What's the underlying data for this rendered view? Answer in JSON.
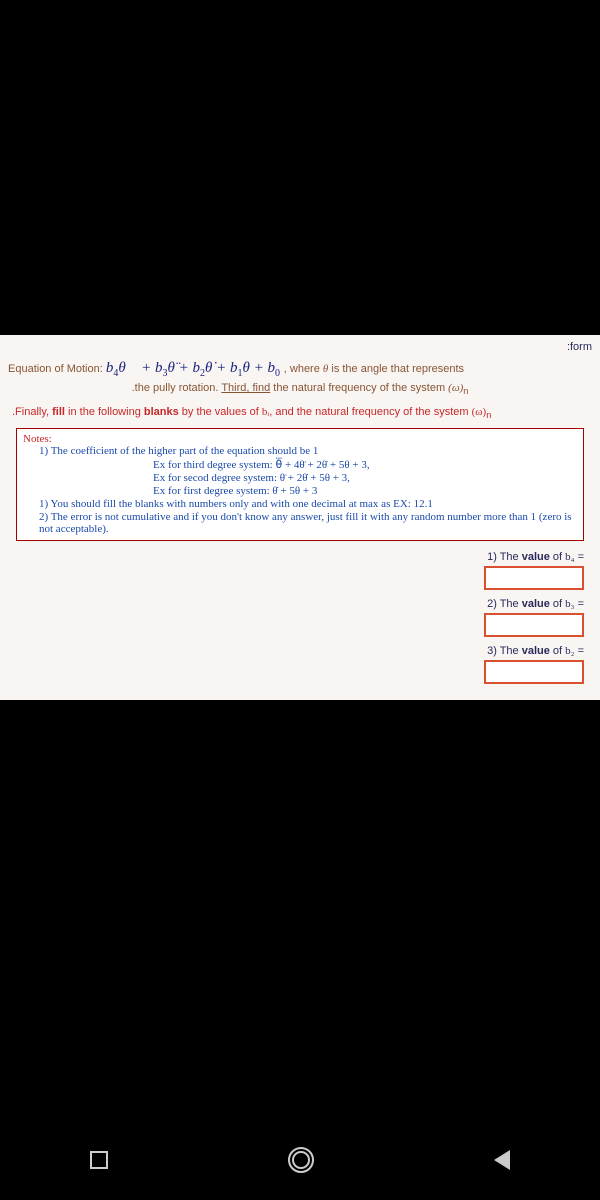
{
  "form_label": ":form",
  "equation": {
    "label": "Equation of Motion:  ",
    "b4": "b",
    "sub4": "4",
    "theta4": "θ⃛",
    "plus1": " + ",
    "b3": "b",
    "sub3": "3",
    "theta3": "θ̈",
    "plus2": " + ",
    "b2": "b",
    "sub2": "2",
    "theta2": "θ̇",
    "plus3": " + ",
    "b1": "b",
    "sub1": "1",
    "theta1": "θ",
    "plus4": " + ",
    "b0": "b",
    "sub0": "0",
    "suffix_pre": "  , where ",
    "suffix_theta": "θ",
    "suffix_post": " is the angle that represents"
  },
  "subtext": {
    "pre": ".the pully rotation. ",
    "third": "Third, find",
    "post": " the natural frequency of the system ",
    "omega": "(ω)",
    "sub": "n"
  },
  "finally": {
    "pre": ".Finally, ",
    "fill": "fill",
    "mid1": " in the following ",
    "blanks": "blanks",
    "mid2": " by the values of ",
    "bi": "bᵢ",
    "mid3": ", and the natural frequency of the system ",
    "omega": "(ω)",
    "sub": "n"
  },
  "notes": {
    "title": "Notes:",
    "item1": "1)  The coefficient of the higher part of the equation should be 1",
    "ex1": "Ex for third degree system: θ⃛ + 4θ̈ + 2θ̇ + 5θ + 3,",
    "ex2": "Ex for secod degree system: θ̈ + 2θ̇ + 5θ + 3,",
    "ex3": "Ex for first degree system: θ̇ + 5θ + 3",
    "item2": "1)  You should fill the blanks with numbers only and with one decimal at max as EX: 12.1",
    "item3": "2)  The error is not cumulative and if you don't know any answer, just fill it with any random number more than 1 (zero is not acceptable)."
  },
  "answers": {
    "q1": {
      "num": "1) The ",
      "value": "value",
      "of": " of ",
      "var": "b₄",
      "eq": " ="
    },
    "q2": {
      "num": "2) The ",
      "value": "value",
      "of": " of ",
      "var": "b₃",
      "eq": " ="
    },
    "q3": {
      "num": "3) The ",
      "value": "value",
      "of": " of ",
      "var": "b₂",
      "eq": " ="
    }
  },
  "colors": {
    "background": "#000000",
    "content_bg": "#f8f5f3",
    "text_dark": "#2a2a5c",
    "text_brown": "#885533",
    "text_red": "#c62828",
    "text_blue_formula": "#1a237e",
    "text_blue_notes": "#1a4aab",
    "input_border": "#d85030",
    "notes_border": "#a00000",
    "nav_icon": "#cccccc"
  }
}
